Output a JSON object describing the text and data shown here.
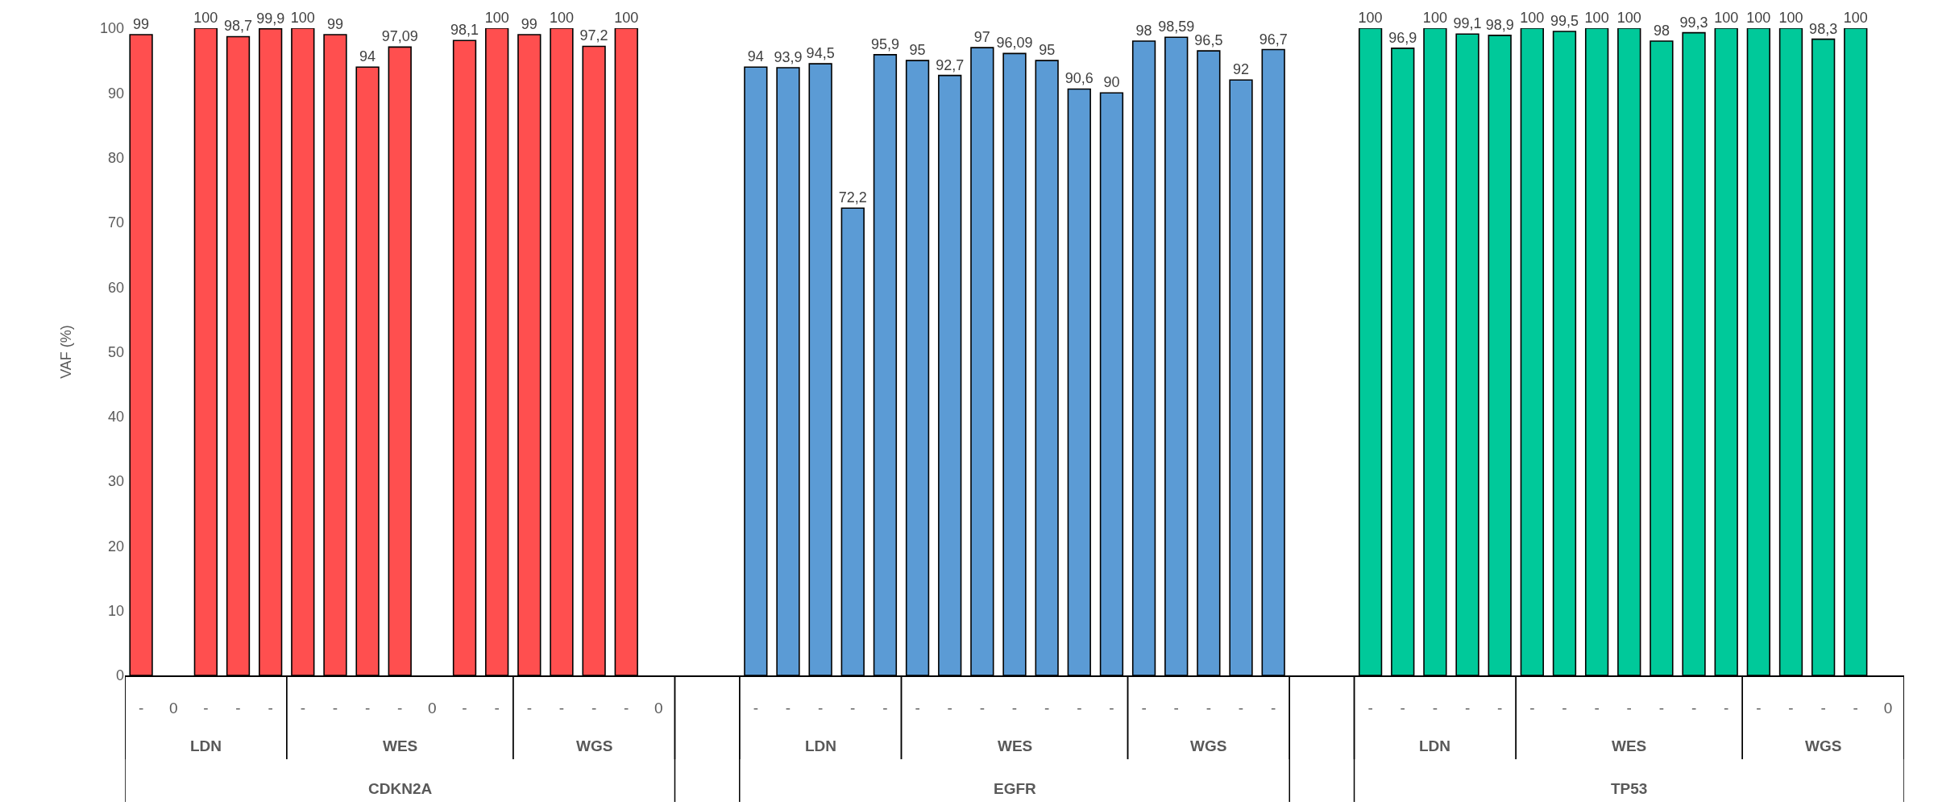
{
  "chart_data": {
    "type": "bar",
    "ylabel": "VAF (%)",
    "categories": [
      "-",
      "0",
      "-",
      "-",
      "-",
      "-",
      "-",
      "-",
      "-",
      "0",
      "-",
      "-",
      "-",
      "-",
      "-",
      "-",
      "0",
      null,
      null,
      "-",
      "-",
      "-",
      "-",
      "-",
      "-",
      "-",
      "-",
      "-",
      "-",
      "-",
      "-",
      "-",
      "-",
      "-",
      "-",
      "-",
      null,
      null,
      "-",
      "-",
      "-",
      "-",
      "-",
      "-",
      "-",
      "-",
      "-",
      "-",
      "-",
      "-",
      "-",
      "-",
      "-",
      "-",
      "0"
    ],
    "series": [
      {
        "color": "#ff4f4f",
        "values": [
          99,
          null,
          100,
          98.7,
          99.9,
          null,
          null,
          null,
          null,
          null,
          null,
          null,
          null,
          null,
          null,
          null,
          null,
          null,
          null,
          null,
          null,
          null,
          null,
          null,
          null,
          null,
          null,
          null,
          null,
          null,
          null,
          null,
          null,
          null,
          null,
          null,
          null,
          null,
          null,
          null,
          null,
          null,
          null,
          null,
          null,
          null,
          null,
          null,
          null,
          null,
          null,
          null,
          null,
          null,
          null
        ],
        "value_labels": [
          "99",
          null,
          "100",
          "98,7",
          "99,9",
          null,
          null,
          null,
          null,
          null,
          null,
          null,
          null,
          null,
          null,
          null,
          null,
          null,
          null,
          null,
          null,
          null,
          null,
          null,
          null,
          null,
          null,
          null,
          null,
          null,
          null,
          null,
          null,
          null,
          null,
          null,
          null,
          null,
          null,
          null,
          null,
          null,
          null,
          null,
          null,
          null,
          null,
          null,
          null,
          null,
          null,
          null,
          null,
          null,
          null
        ]
      },
      {
        "color": "#ff4f4f",
        "values": [
          null,
          null,
          null,
          null,
          null,
          100,
          99,
          94,
          97.09,
          null,
          98.1,
          100,
          null,
          null,
          null,
          null,
          null,
          null,
          null,
          null,
          null,
          null,
          null,
          null,
          null,
          null,
          null,
          null,
          null,
          null,
          null,
          null,
          null,
          null,
          null,
          null,
          null,
          null,
          null,
          null,
          null,
          null,
          null,
          null,
          null,
          null,
          null,
          null,
          null,
          null,
          null,
          null,
          null,
          null,
          null
        ],
        "value_labels": [
          null,
          null,
          null,
          null,
          null,
          "100",
          "99",
          "94",
          "97,09",
          null,
          "98,1",
          "100",
          null,
          null,
          null,
          null,
          null,
          null,
          null,
          null,
          null,
          null,
          null,
          null,
          null,
          null,
          null,
          null,
          null,
          null,
          null,
          null,
          null,
          null,
          null,
          null,
          null,
          null,
          null,
          null,
          null,
          null,
          null,
          null,
          null,
          null,
          null,
          null,
          null,
          null,
          null,
          null,
          null,
          null,
          null
        ]
      },
      {
        "color": "#ff4f4f",
        "values": [
          null,
          null,
          null,
          null,
          null,
          null,
          null,
          null,
          null,
          null,
          null,
          null,
          99,
          100,
          97.2,
          100,
          null,
          null,
          null,
          null,
          null,
          null,
          null,
          null,
          null,
          null,
          null,
          null,
          null,
          null,
          null,
          null,
          null,
          null,
          null,
          null,
          null,
          null,
          null,
          null,
          null,
          null,
          null,
          null,
          null,
          null,
          null,
          null,
          null,
          null,
          null,
          null,
          null,
          null,
          null
        ],
        "value_labels": [
          null,
          null,
          null,
          null,
          null,
          null,
          null,
          null,
          null,
          null,
          null,
          null,
          "99",
          "100",
          "97,2",
          "100",
          null,
          null,
          null,
          null,
          null,
          null,
          null,
          null,
          null,
          null,
          null,
          null,
          null,
          null,
          null,
          null,
          null,
          null,
          null,
          null,
          null,
          null,
          null,
          null,
          null,
          null,
          null,
          null,
          null,
          null,
          null,
          null,
          null,
          null,
          null,
          null,
          null,
          null,
          null
        ]
      },
      {
        "color": "#5b9bd5",
        "values": [
          null,
          null,
          null,
          null,
          null,
          null,
          null,
          null,
          null,
          null,
          null,
          null,
          null,
          null,
          null,
          null,
          null,
          null,
          null,
          94,
          93.9,
          94.5,
          72.2,
          95.9,
          null,
          null,
          null,
          null,
          null,
          null,
          null,
          null,
          null,
          null,
          null,
          null,
          null,
          null,
          null,
          null,
          null,
          null,
          null,
          null,
          null,
          null,
          null,
          null,
          null,
          null,
          null,
          null,
          null,
          null,
          null
        ],
        "value_labels": [
          null,
          null,
          null,
          null,
          null,
          null,
          null,
          null,
          null,
          null,
          null,
          null,
          null,
          null,
          null,
          null,
          null,
          null,
          null,
          "94",
          "93,9",
          "94,5",
          "72,2",
          "95,9",
          null,
          null,
          null,
          null,
          null,
          null,
          null,
          null,
          null,
          null,
          null,
          null,
          null,
          null,
          null,
          null,
          null,
          null,
          null,
          null,
          null,
          null,
          null,
          null,
          null,
          null,
          null,
          null,
          null,
          null,
          null
        ]
      },
      {
        "color": "#5b9bd5",
        "values": [
          null,
          null,
          null,
          null,
          null,
          null,
          null,
          null,
          null,
          null,
          null,
          null,
          null,
          null,
          null,
          null,
          null,
          null,
          null,
          null,
          null,
          null,
          null,
          null,
          95,
          92.7,
          97,
          96.09,
          95,
          90.6,
          90,
          null,
          null,
          null,
          null,
          null,
          null,
          null,
          null,
          null,
          null,
          null,
          null,
          null,
          null,
          null,
          null,
          null,
          null,
          null,
          null,
          null,
          null,
          null,
          null
        ],
        "value_labels": [
          null,
          null,
          null,
          null,
          null,
          null,
          null,
          null,
          null,
          null,
          null,
          null,
          null,
          null,
          null,
          null,
          null,
          null,
          null,
          null,
          null,
          null,
          null,
          null,
          "95",
          "92,7",
          "97",
          "96,09",
          "95",
          "90,6",
          "90",
          null,
          null,
          null,
          null,
          null,
          null,
          null,
          null,
          null,
          null,
          null,
          null,
          null,
          null,
          null,
          null,
          null,
          null,
          null,
          null,
          null,
          null,
          null,
          null
        ]
      },
      {
        "color": "#5b9bd5",
        "values": [
          null,
          null,
          null,
          null,
          null,
          null,
          null,
          null,
          null,
          null,
          null,
          null,
          null,
          null,
          null,
          null,
          null,
          null,
          null,
          null,
          null,
          null,
          null,
          null,
          null,
          null,
          null,
          null,
          null,
          null,
          null,
          98,
          98.59,
          96.5,
          92,
          96.7,
          null,
          null,
          null,
          null,
          null,
          null,
          null,
          null,
          null,
          null,
          null,
          null,
          null,
          null,
          null,
          null,
          null,
          null,
          null
        ],
        "value_labels": [
          null,
          null,
          null,
          null,
          null,
          null,
          null,
          null,
          null,
          null,
          null,
          null,
          null,
          null,
          null,
          null,
          null,
          null,
          null,
          null,
          null,
          null,
          null,
          null,
          null,
          null,
          null,
          null,
          null,
          null,
          null,
          "98",
          "98,59",
          "96,5",
          "92",
          "96,7",
          null,
          null,
          null,
          null,
          null,
          null,
          null,
          null,
          null,
          null,
          null,
          null,
          null,
          null,
          null,
          null,
          null,
          null,
          null
        ]
      },
      {
        "color": "#00c99a",
        "values": [
          null,
          null,
          null,
          null,
          null,
          null,
          null,
          null,
          null,
          null,
          null,
          null,
          null,
          null,
          null,
          null,
          null,
          null,
          null,
          null,
          null,
          null,
          null,
          null,
          null,
          null,
          null,
          null,
          null,
          null,
          null,
          null,
          null,
          null,
          null,
          null,
          null,
          null,
          100,
          96.9,
          100,
          99.1,
          98.9,
          null,
          null,
          null,
          null,
          null,
          null,
          null,
          null,
          null,
          null,
          null,
          null
        ],
        "value_labels": [
          null,
          null,
          null,
          null,
          null,
          null,
          null,
          null,
          null,
          null,
          null,
          null,
          null,
          null,
          null,
          null,
          null,
          null,
          null,
          null,
          null,
          null,
          null,
          null,
          null,
          null,
          null,
          null,
          null,
          null,
          null,
          null,
          null,
          null,
          null,
          null,
          null,
          null,
          "100",
          "96,9",
          "100",
          "99,1",
          "98,9",
          null,
          null,
          null,
          null,
          null,
          null,
          null,
          null,
          null,
          null,
          null,
          null
        ]
      },
      {
        "color": "#00c99a",
        "values": [
          null,
          null,
          null,
          null,
          null,
          null,
          null,
          null,
          null,
          null,
          null,
          null,
          null,
          null,
          null,
          null,
          null,
          null,
          null,
          null,
          null,
          null,
          null,
          null,
          null,
          null,
          null,
          null,
          null,
          null,
          null,
          null,
          null,
          null,
          null,
          null,
          null,
          null,
          null,
          null,
          null,
          null,
          null,
          100,
          99.5,
          100,
          100,
          98,
          99.3,
          100,
          null,
          null,
          null,
          null,
          null
        ],
        "value_labels": [
          null,
          null,
          null,
          null,
          null,
          null,
          null,
          null,
          null,
          null,
          null,
          null,
          null,
          null,
          null,
          null,
          null,
          null,
          null,
          null,
          null,
          null,
          null,
          null,
          null,
          null,
          null,
          null,
          null,
          null,
          null,
          null,
          null,
          null,
          null,
          null,
          null,
          null,
          null,
          null,
          null,
          null,
          null,
          "100",
          "99,5",
          "100",
          "100",
          "98",
          "99,3",
          "100",
          null,
          null,
          null,
          null,
          null
        ]
      },
      {
        "color": "#00c99a",
        "values": [
          null,
          null,
          null,
          null,
          null,
          null,
          null,
          null,
          null,
          null,
          null,
          null,
          null,
          null,
          null,
          null,
          null,
          null,
          null,
          null,
          null,
          null,
          null,
          null,
          null,
          null,
          null,
          null,
          null,
          null,
          null,
          null,
          null,
          null,
          null,
          null,
          null,
          null,
          null,
          null,
          null,
          null,
          null,
          null,
          null,
          null,
          null,
          null,
          null,
          null,
          100,
          100,
          98.3,
          100,
          null
        ],
        "value_labels": [
          null,
          null,
          null,
          null,
          null,
          null,
          null,
          null,
          null,
          null,
          null,
          null,
          null,
          null,
          null,
          null,
          null,
          null,
          null,
          null,
          null,
          null,
          null,
          null,
          null,
          null,
          null,
          null,
          null,
          null,
          null,
          null,
          null,
          null,
          null,
          null,
          null,
          null,
          null,
          null,
          null,
          null,
          null,
          null,
          null,
          null,
          null,
          null,
          null,
          null,
          "100",
          "100",
          "98,3",
          "100",
          null
        ]
      }
    ],
    "annotations": [
      "LDN",
      "WES",
      "WGS",
      "LDN",
      "WES",
      "WGS",
      "LDN",
      "WES",
      "WGS",
      "CDKN2A",
      "EGFR",
      "TP53"
    ],
    "ylim": [
      0,
      100
    ],
    "yticks": [
      0,
      10,
      20,
      30,
      40,
      50,
      60,
      70,
      80,
      90,
      100
    ],
    "legend": false
  }
}
